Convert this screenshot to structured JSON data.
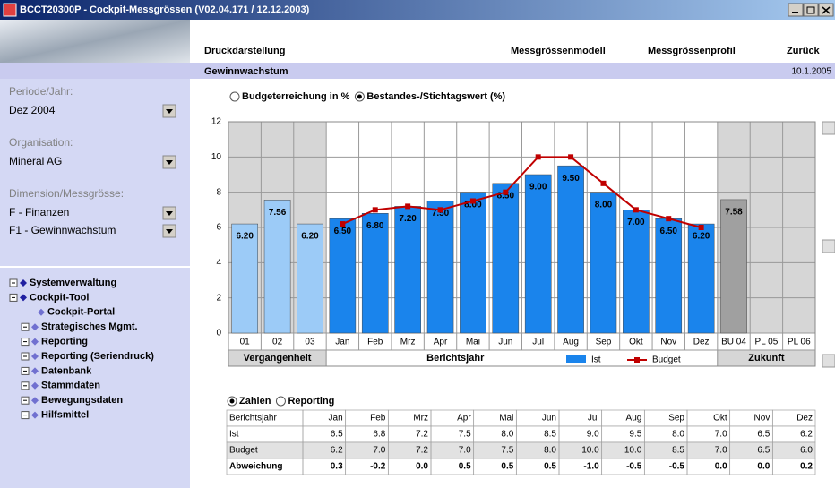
{
  "window": {
    "title": "BCCT20300P - Cockpit-Messgrössen (V02.04.171 / 12.12.2003)"
  },
  "nav": [
    "Druckdarstellung",
    "Messgrössenmodell",
    "Messgrössenprofil",
    "Zurück"
  ],
  "header": {
    "title": "Gewinnwachstum",
    "date": "10.1.2005"
  },
  "filters": [
    {
      "label": "Periode/Jahr:",
      "selects": [
        "Dez 2004"
      ]
    },
    {
      "label": "Organisation:",
      "selects": [
        "Mineral AG"
      ]
    },
    {
      "label": "Dimension/Messgrösse:",
      "selects": [
        "F - Finanzen",
        "F1 - Gewinnwachstum"
      ]
    }
  ],
  "tree": [
    {
      "label": "Systemverwaltung",
      "children": []
    },
    {
      "label": "Cockpit-Tool",
      "children": [
        {
          "label": "Cockpit-Portal"
        },
        {
          "label": "Strategisches Mgmt."
        },
        {
          "label": "Reporting"
        },
        {
          "label": "Reporting (Seriendruck)"
        },
        {
          "label": "Datenbank"
        },
        {
          "label": "Stammdaten"
        },
        {
          "label": "Bewegungsdaten"
        },
        {
          "label": "Hilfsmittel"
        }
      ]
    }
  ],
  "chart_options": [
    {
      "label": "Budgeterreichung in %",
      "selected": false
    },
    {
      "label": "Bestandes-/Stichtagswert (%)",
      "selected": true
    }
  ],
  "table_options": [
    {
      "label": "Zahlen",
      "selected": true
    },
    {
      "label": "Reporting",
      "selected": false
    }
  ],
  "chart_data": {
    "type": "bar",
    "categories": [
      "01",
      "02",
      "03",
      "Jan",
      "Feb",
      "Mrz",
      "Apr",
      "Mai",
      "Jun",
      "Jul",
      "Aug",
      "Sep",
      "Okt",
      "Nov",
      "Dez",
      "BU 04",
      "PL 05",
      "PL 06"
    ],
    "x_groups": [
      {
        "name": "Vergangenheit",
        "size": 3,
        "background": "#d6d6d6"
      },
      {
        "name": "Berichtsjahr",
        "size": 12,
        "background": "#ffffff"
      },
      {
        "name": "Zukunft",
        "size": 3,
        "background": "#d6d6d6"
      }
    ],
    "series": [
      {
        "name": "Ist",
        "type": "bar",
        "color": "#1a84ec",
        "bar_colors": [
          "#9ccbf7",
          "#9ccbf7",
          "#9ccbf7",
          "#1a84ec",
          "#1a84ec",
          "#1a84ec",
          "#1a84ec",
          "#1a84ec",
          "#1a84ec",
          "#1a84ec",
          "#1a84ec",
          "#1a84ec",
          "#1a84ec",
          "#1a84ec",
          "#1a84ec",
          "#a0a0a0",
          "#a0a0a0",
          "#a0a0a0"
        ],
        "values": [
          6.2,
          7.56,
          6.2,
          6.5,
          6.8,
          7.2,
          7.5,
          8.0,
          8.5,
          9.0,
          9.5,
          8.0,
          7.0,
          6.5,
          6.2,
          7.58,
          null,
          null
        ],
        "value_labels": [
          "6.20",
          "7.56",
          "6.20",
          "6.50",
          "6.80",
          "7.20",
          "7.50",
          "8.00",
          "8.50",
          "9.00",
          "9.50",
          "8.00",
          "7.00",
          "6.50",
          "6.20",
          "7.58",
          null,
          null
        ]
      },
      {
        "name": "Budget",
        "type": "line",
        "color": "#c00000",
        "values": [
          null,
          null,
          null,
          6.2,
          7.0,
          7.2,
          7.0,
          7.5,
          8.0,
          10.0,
          10.0,
          8.5,
          7.0,
          6.5,
          6.0,
          null,
          null,
          null
        ]
      }
    ],
    "ylim": [
      0,
      12
    ],
    "yticks": [
      0,
      2,
      4,
      6,
      8,
      10,
      12
    ],
    "grid": true
  },
  "table": {
    "header": [
      "Berichtsjahr",
      "Jan",
      "Feb",
      "Mrz",
      "Apr",
      "Mai",
      "Jun",
      "Jul",
      "Aug",
      "Sep",
      "Okt",
      "Nov",
      "Dez"
    ],
    "rows": [
      [
        "Ist",
        "6.5",
        "6.8",
        "7.2",
        "7.5",
        "8.0",
        "8.5",
        "9.0",
        "9.5",
        "8.0",
        "7.0",
        "6.5",
        "6.2"
      ],
      [
        "Budget",
        "6.2",
        "7.0",
        "7.2",
        "7.0",
        "7.5",
        "8.0",
        "10.0",
        "10.0",
        "8.5",
        "7.0",
        "6.5",
        "6.0"
      ],
      [
        "Abweichung",
        "0.3",
        "-0.2",
        "0.0",
        "0.5",
        "0.5",
        "0.5",
        "-1.0",
        "-0.5",
        "-0.5",
        "0.0",
        "0.0",
        "0.2"
      ]
    ]
  }
}
